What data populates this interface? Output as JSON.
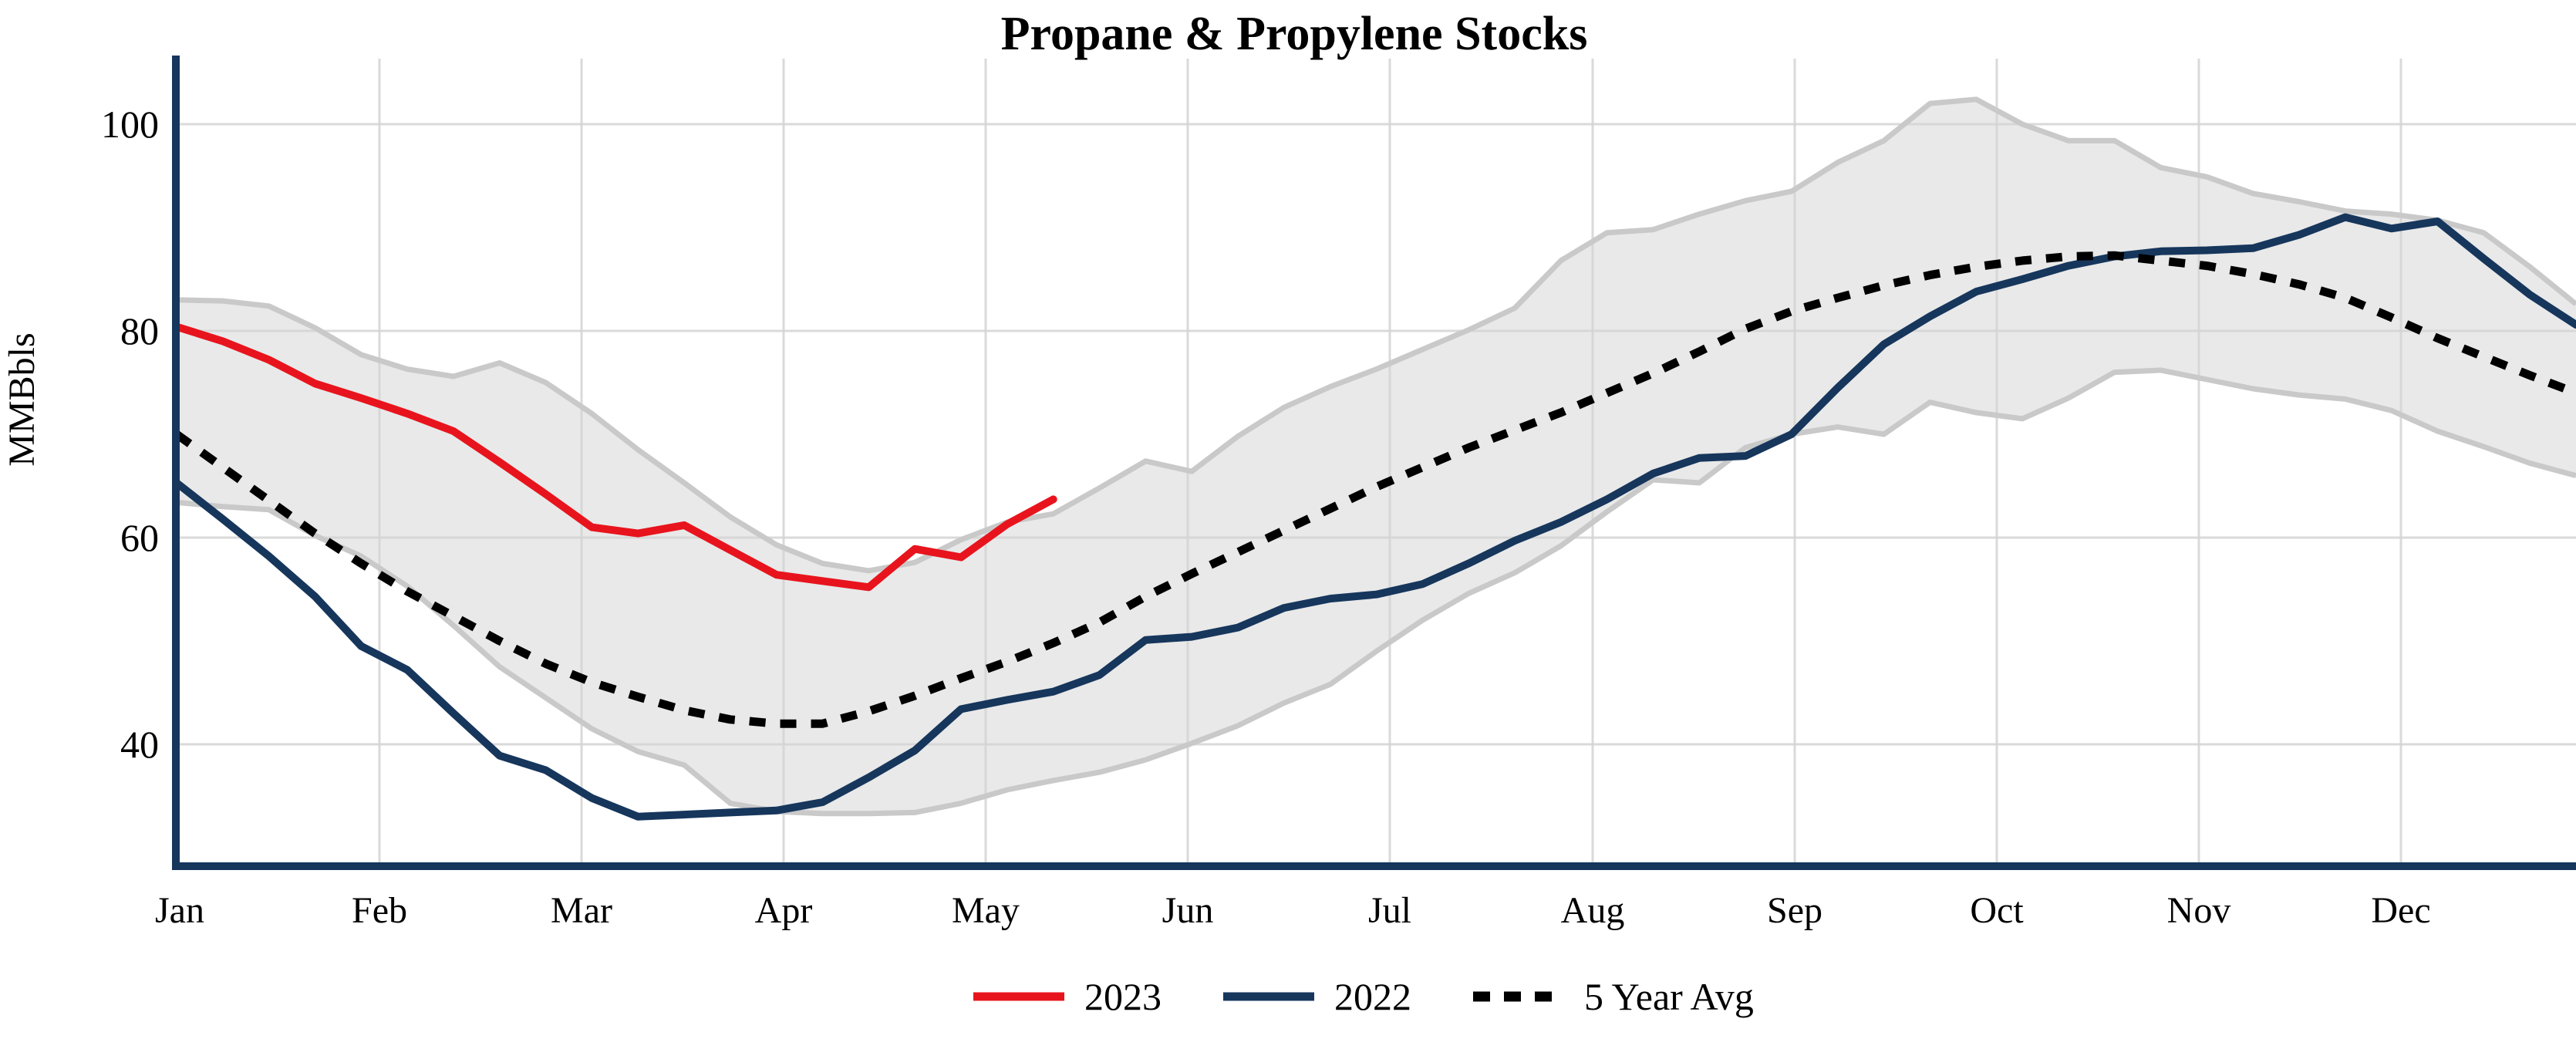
{
  "title": "Propane & Propylene Stocks",
  "colors": {
    "red_2023": "#e8141d",
    "navy_2022": "#16365c",
    "dotted_avg": "#000000",
    "band_fill": "#e9e9e9",
    "band_edge": "#c9c9c9",
    "gridline": "#d4d4d4",
    "axis": "#16365c"
  },
  "legend": [
    {
      "label": "2023",
      "style": "solid",
      "color": "#e8141d"
    },
    {
      "label": "2022",
      "style": "solid",
      "color": "#16365c"
    },
    {
      "label": "5 Year Avg",
      "style": "dotted",
      "color": "#000000"
    }
  ],
  "chart_data": {
    "type": "line",
    "title": "Propane & Propylene Stocks",
    "xlabel": "",
    "ylabel": "MMBbls",
    "x_unit": "weekly (Jan-Dec)",
    "ylim": [
      28,
      108
    ],
    "grid": true,
    "y_ticks": [
      40,
      60,
      80,
      100
    ],
    "months": [
      "Jan",
      "Feb",
      "Mar",
      "Apr",
      "May",
      "Jun",
      "Jul",
      "Aug",
      "Sep",
      "Oct",
      "Nov",
      "Dec"
    ],
    "series": [
      {
        "name": "2023",
        "style": "solid",
        "color": "#e8141d",
        "start_week": 1,
        "values": [
          80.4,
          79.0,
          77.2,
          74.9,
          73.5,
          72.0,
          70.3,
          67.3,
          64.2,
          61.0,
          60.4,
          61.2,
          58.8,
          56.4,
          55.8,
          55.2,
          58.9,
          58.1,
          61.3,
          63.7
        ]
      },
      {
        "name": "2022",
        "style": "solid",
        "color": "#16365c",
        "start_week": 1,
        "values": [
          65.3,
          61.8,
          58.2,
          54.3,
          49.5,
          47.2,
          43.0,
          38.9,
          37.5,
          34.8,
          33.0,
          33.2,
          33.4,
          33.6,
          34.4,
          36.8,
          39.4,
          43.4,
          44.3,
          45.1,
          46.7,
          50.1,
          50.4,
          51.3,
          53.2,
          54.1,
          54.5,
          55.5,
          57.5,
          59.7,
          61.5,
          63.7,
          66.2,
          67.7,
          67.9,
          70.0,
          74.5,
          78.7,
          81.4,
          83.8,
          85.0,
          86.3,
          87.2,
          87.7,
          87.8,
          88.0,
          89.3,
          91.0,
          89.9,
          90.6,
          87.0,
          83.5,
          80.6
        ]
      },
      {
        "name": "5 Year Avg",
        "style": "dotted",
        "color": "#000000",
        "start_week": 1,
        "values": [
          70.0,
          66.8,
          63.6,
          60.4,
          57.5,
          54.8,
          52.4,
          50.0,
          47.8,
          46.0,
          44.6,
          43.3,
          42.4,
          42.0,
          42.0,
          43.2,
          44.7,
          46.4,
          48.0,
          49.8,
          51.8,
          54.3,
          56.5,
          58.6,
          60.7,
          62.8,
          64.9,
          66.8,
          68.7,
          70.4,
          72.1,
          74.0,
          75.9,
          78.0,
          80.2,
          81.9,
          83.2,
          84.4,
          85.4,
          86.2,
          86.8,
          87.2,
          87.3,
          86.8,
          86.3,
          85.5,
          84.5,
          83.2,
          81.3,
          79.3,
          77.5,
          75.7,
          74.0
        ]
      }
    ],
    "band": {
      "name": "5-year range",
      "fill": "#e9e9e9",
      "edge": "#c9c9c9",
      "upper": [
        83.0,
        82.9,
        82.4,
        80.3,
        77.7,
        76.3,
        75.6,
        76.9,
        75.0,
        72.0,
        68.5,
        65.3,
        62.0,
        59.3,
        57.5,
        56.8,
        57.6,
        59.8,
        61.5,
        62.3,
        64.8,
        67.4,
        66.4,
        69.8,
        72.6,
        74.6,
        76.3,
        78.2,
        80.1,
        82.2,
        86.8,
        89.5,
        89.8,
        91.3,
        92.6,
        93.5,
        96.3,
        98.4,
        102.0,
        102.4,
        100.0,
        98.4,
        98.4,
        95.8,
        94.9,
        93.3,
        92.5,
        91.6,
        91.3,
        90.7,
        89.5,
        86.2,
        82.6
      ],
      "lower": [
        63.4,
        63.0,
        62.7,
        60.2,
        58.2,
        55.3,
        51.5,
        47.5,
        44.5,
        41.5,
        39.3,
        38.0,
        34.3,
        33.5,
        33.3,
        33.3,
        33.4,
        34.3,
        35.6,
        36.5,
        37.3,
        38.5,
        40.1,
        41.8,
        44.0,
        45.8,
        49.0,
        52.0,
        54.6,
        56.6,
        59.2,
        62.5,
        65.6,
        65.3,
        68.7,
        70.0,
        70.7,
        70.0,
        73.1,
        72.1,
        71.5,
        73.5,
        76.0,
        76.2,
        75.3,
        74.4,
        73.8,
        73.4,
        72.3,
        70.3,
        68.8,
        67.2,
        66.0
      ]
    }
  }
}
